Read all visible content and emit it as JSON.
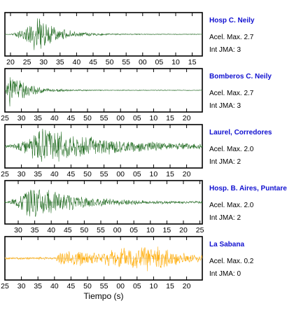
{
  "chart_data": {
    "type": "line",
    "xlabel": "Tiempo (s)",
    "panels": [
      {
        "station": "Hosp C. Neily",
        "acel_label": "Acel. Max. 2.7",
        "int_label": "Int JMA: 3",
        "color": "#1f6b1f",
        "ticks": [
          "20",
          "25",
          "30",
          "35",
          "40",
          "45",
          "50",
          "55",
          "00",
          "05",
          "10",
          "15"
        ],
        "peak_time_frac": 0.17,
        "onset_frac": 0.02,
        "decay": 0.1,
        "noise_amp": 0.02
      },
      {
        "station": "Bomberos C. Neily",
        "acel_label": "Acel. Max. 2.7",
        "int_label": "Int JMA: 3",
        "color": "#1f6b1f",
        "ticks": [
          "25",
          "30",
          "35",
          "40",
          "45",
          "50",
          "55",
          "00",
          "05",
          "10",
          "15",
          "20"
        ],
        "peak_time_frac": 0.02,
        "onset_frac": 0.0,
        "decay": 0.09,
        "noise_amp": 0.02
      },
      {
        "station": "Laurel, Corredores",
        "acel_label": "Acel. Max. 2.0",
        "int_label": "Int JMA: 2",
        "color": "#1f6b1f",
        "ticks": [
          "25",
          "30",
          "35",
          "40",
          "45",
          "50",
          "55",
          "00",
          "05",
          "10",
          "15",
          "20"
        ],
        "peak_time_frac": 0.18,
        "onset_frac": 0.0,
        "decay": 0.35,
        "noise_amp": 0.06
      },
      {
        "station": "Hosp. B. Aires, Puntare",
        "acel_label": "Acel. Max. 2.0",
        "int_label": "Int JMA: 2",
        "color": "#1f6b1f",
        "ticks": [
          "30",
          "35",
          "40",
          "45",
          "50",
          "55",
          "00",
          "05",
          "10",
          "15",
          "20",
          "25"
        ],
        "peak_time_frac": 0.13,
        "onset_frac": 0.0,
        "decay": 0.22,
        "noise_amp": 0.04
      },
      {
        "station": "La Sabana",
        "acel_label": "Acel. Max. 0.2",
        "int_label": "Int JMA: 0",
        "color": "#ffaa00",
        "ticks": [
          "25",
          "30",
          "35",
          "40",
          "45",
          "50",
          "55",
          "00",
          "05",
          "10",
          "15",
          "20"
        ],
        "peak_time_frac": 0.68,
        "onset_frac": 0.26,
        "decay": 0.6,
        "noise_amp": 0.03
      }
    ]
  }
}
